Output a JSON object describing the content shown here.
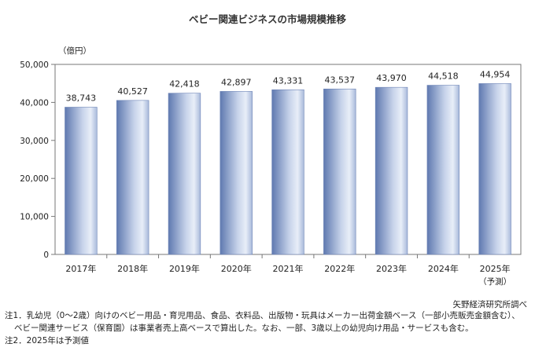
{
  "chart_data": {
    "type": "bar",
    "title": "ベビー関連ビジネスの市場規模推移",
    "unit_label": "（億円）",
    "categories": [
      "2017年",
      "2018年",
      "2019年",
      "2020年",
      "2021年",
      "2022年",
      "2023年",
      "2024年",
      "2025年"
    ],
    "category_sublabels": [
      "",
      "",
      "",
      "",
      "",
      "",
      "",
      "",
      "（予測）"
    ],
    "values": [
      38743,
      40527,
      42418,
      42897,
      43331,
      43537,
      43970,
      44518,
      44954
    ],
    "value_labels": [
      "38,743",
      "40,527",
      "42,418",
      "42,897",
      "43,331",
      "43,537",
      "43,970",
      "44,518",
      "44,954"
    ],
    "ylim": [
      0,
      50000
    ],
    "yticks": [
      0,
      10000,
      20000,
      30000,
      40000,
      50000
    ],
    "ytick_labels": [
      "0",
      "10,000",
      "20,000",
      "30,000",
      "40,000",
      "50,000"
    ],
    "grid": false,
    "colors": {
      "bar_dark": "#5f79b0",
      "bar_light": "#e8eef8",
      "frame": "#777777"
    }
  },
  "notes": {
    "source": "矢野経済研究所調べ",
    "note1_line1": "注1．乳幼児（0～2歳）向けのベビー用品・育児用品、食品、衣料品、出版物・玩具はメーカー出荷金額ベース（一部小売販売金額含む）、",
    "note1_line2": "ベビー関連サービス（保育園）は事業者売上高ベースで算出した。なお、一部、3歳以上の幼児向け用品・サービスも含む。",
    "note2": "注2．2025年は予測値"
  }
}
